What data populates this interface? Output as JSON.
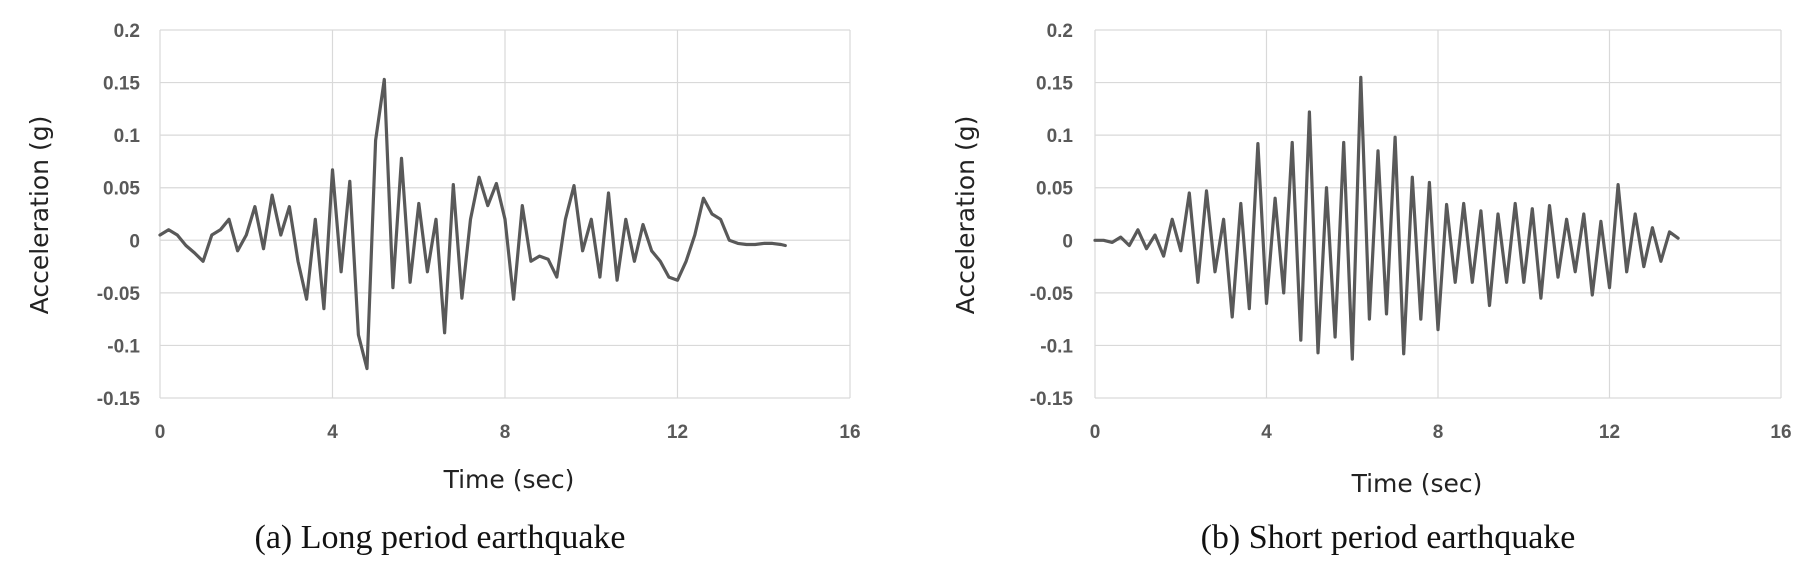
{
  "chart_data": [
    {
      "type": "line",
      "caption": "(a) Long period earthquake",
      "xlabel": "Time (sec)",
      "ylabel": "Acceleration (g)",
      "xlim": [
        0,
        16
      ],
      "ylim": [
        -0.15,
        0.2
      ],
      "xticks": [
        "0",
        "4",
        "8",
        "12",
        "16"
      ],
      "yticks": [
        "0.2",
        "0.15",
        "0.1",
        "0.05",
        "0",
        "-0.05",
        "-0.1",
        "-0.15"
      ],
      "grid": true,
      "series": [
        {
          "name": "Long period earthquake",
          "x": [
            0,
            0.2,
            0.4,
            0.6,
            0.8,
            1.0,
            1.2,
            1.4,
            1.6,
            1.8,
            2.0,
            2.2,
            2.4,
            2.6,
            2.8,
            3.0,
            3.2,
            3.4,
            3.6,
            3.8,
            4.0,
            4.2,
            4.4,
            4.6,
            4.8,
            5.0,
            5.2,
            5.4,
            5.6,
            5.8,
            6.0,
            6.2,
            6.4,
            6.6,
            6.8,
            7.0,
            7.2,
            7.4,
            7.6,
            7.8,
            8.0,
            8.2,
            8.4,
            8.6,
            8.8,
            9.0,
            9.2,
            9.4,
            9.6,
            9.8,
            10.0,
            10.2,
            10.4,
            10.6,
            10.8,
            11.0,
            11.2,
            11.4,
            11.6,
            11.8,
            12.0,
            12.2,
            12.4,
            12.6,
            12.8,
            13.0,
            13.2,
            13.4,
            13.6,
            13.8,
            14.0,
            14.2,
            14.4,
            14.5
          ],
          "y": [
            0.005,
            0.01,
            0.005,
            -0.005,
            -0.012,
            -0.02,
            0.005,
            0.01,
            0.02,
            -0.01,
            0.005,
            0.032,
            -0.008,
            0.043,
            0.005,
            0.032,
            -0.02,
            -0.056,
            0.02,
            -0.065,
            0.067,
            -0.03,
            0.056,
            -0.09,
            -0.122,
            0.095,
            0.153,
            -0.045,
            0.078,
            -0.04,
            0.035,
            -0.03,
            0.02,
            -0.088,
            0.053,
            -0.055,
            0.02,
            0.06,
            0.033,
            0.054,
            0.02,
            -0.056,
            0.033,
            -0.02,
            -0.015,
            -0.018,
            -0.035,
            0.02,
            0.052,
            -0.01,
            0.02,
            -0.035,
            0.045,
            -0.038,
            0.02,
            -0.02,
            0.015,
            -0.01,
            -0.02,
            -0.035,
            -0.038,
            -0.02,
            0.005,
            0.04,
            0.025,
            0.02,
            0.0,
            -0.003,
            -0.004,
            -0.004,
            -0.003,
            -0.003,
            -0.004,
            -0.005
          ]
        }
      ]
    },
    {
      "type": "line",
      "caption": "(b) Short period earthquake",
      "xlabel": "Time (sec)",
      "ylabel": "Acceleration (g)",
      "xlim": [
        0,
        16
      ],
      "ylim": [
        -0.15,
        0.2
      ],
      "xticks": [
        "0",
        "4",
        "8",
        "12",
        "16"
      ],
      "yticks": [
        "0.2",
        "0.15",
        "0.1",
        "0.05",
        "0",
        "-0.05",
        "-0.1",
        "-0.15"
      ],
      "grid": true,
      "series": [
        {
          "name": "Short period earthquake",
          "x": [
            0,
            0.2,
            0.4,
            0.6,
            0.8,
            1.0,
            1.2,
            1.4,
            1.6,
            1.8,
            2.0,
            2.2,
            2.4,
            2.6,
            2.8,
            3.0,
            3.2,
            3.4,
            3.6,
            3.8,
            4.0,
            4.2,
            4.4,
            4.6,
            4.8,
            5.0,
            5.2,
            5.4,
            5.6,
            5.8,
            6.0,
            6.2,
            6.4,
            6.6,
            6.8,
            7.0,
            7.2,
            7.4,
            7.6,
            7.8,
            8.0,
            8.2,
            8.4,
            8.6,
            8.8,
            9.0,
            9.2,
            9.4,
            9.6,
            9.8,
            10.0,
            10.2,
            10.4,
            10.6,
            10.8,
            11.0,
            11.2,
            11.4,
            11.6,
            11.8,
            12.0,
            12.2,
            12.4,
            12.6,
            12.8,
            13.0,
            13.2,
            13.4,
            13.6
          ],
          "y": [
            0.0,
            0.0,
            -0.002,
            0.003,
            -0.005,
            0.01,
            -0.008,
            0.005,
            -0.015,
            0.02,
            -0.01,
            0.045,
            -0.04,
            0.047,
            -0.03,
            0.02,
            -0.073,
            0.035,
            -0.065,
            0.092,
            -0.06,
            0.04,
            -0.05,
            0.093,
            -0.095,
            0.122,
            -0.107,
            0.05,
            -0.092,
            0.093,
            -0.113,
            0.155,
            -0.075,
            0.085,
            -0.07,
            0.098,
            -0.108,
            0.06,
            -0.075,
            0.055,
            -0.085,
            0.034,
            -0.04,
            0.035,
            -0.04,
            0.028,
            -0.062,
            0.025,
            -0.04,
            0.035,
            -0.04,
            0.03,
            -0.055,
            0.033,
            -0.035,
            0.02,
            -0.03,
            0.025,
            -0.052,
            0.018,
            -0.045,
            0.053,
            -0.03,
            0.025,
            -0.025,
            0.012,
            -0.02,
            0.008,
            0.002
          ]
        }
      ]
    }
  ]
}
